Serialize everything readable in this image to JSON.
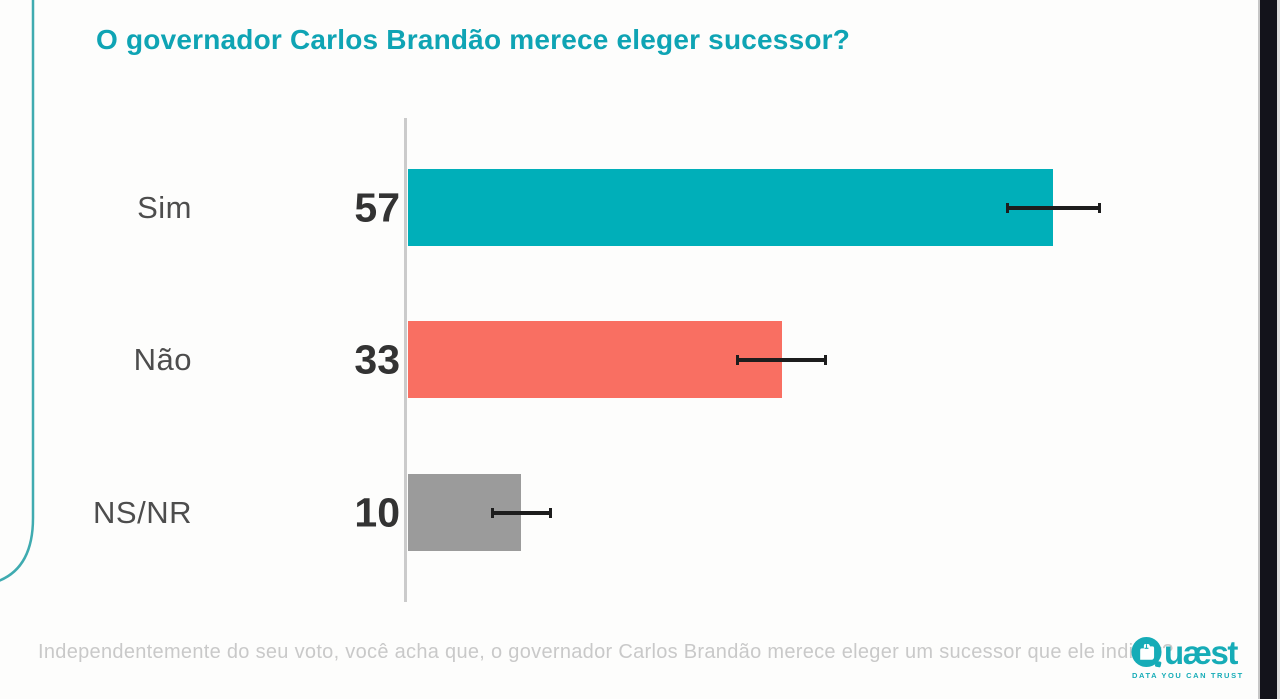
{
  "title": "O governador Carlos Brandão merece eleger sucessor?",
  "footnote": "Independentemente do seu voto, você acha que, o governador Carlos Brandão merece eleger um sucessor que ele indicar?",
  "logo": {
    "name": "Quaest",
    "wordmark_rest": "uæst",
    "tagline": "DATA YOU CAN TRUST",
    "color": "#16acb7"
  },
  "chart_data": {
    "type": "bar",
    "orientation": "horizontal",
    "title": "O governador Carlos Brandão merece eleger sucessor?",
    "categories": [
      "Sim",
      "Não",
      "NS/NR"
    ],
    "values": [
      57,
      33,
      10
    ],
    "error_margin": [
      4.2,
      4.0,
      2.7
    ],
    "colors": [
      "#00AFB9",
      "#F96F62",
      "#9B9B9B"
    ],
    "title_color": "#0FA4B4",
    "axis_color": "#CBCBCB",
    "errorbar_color": "#1D1D1D",
    "xlim": [
      0,
      100
    ],
    "grid": false,
    "legend": false,
    "value_label_position": "left of baseline axis"
  }
}
